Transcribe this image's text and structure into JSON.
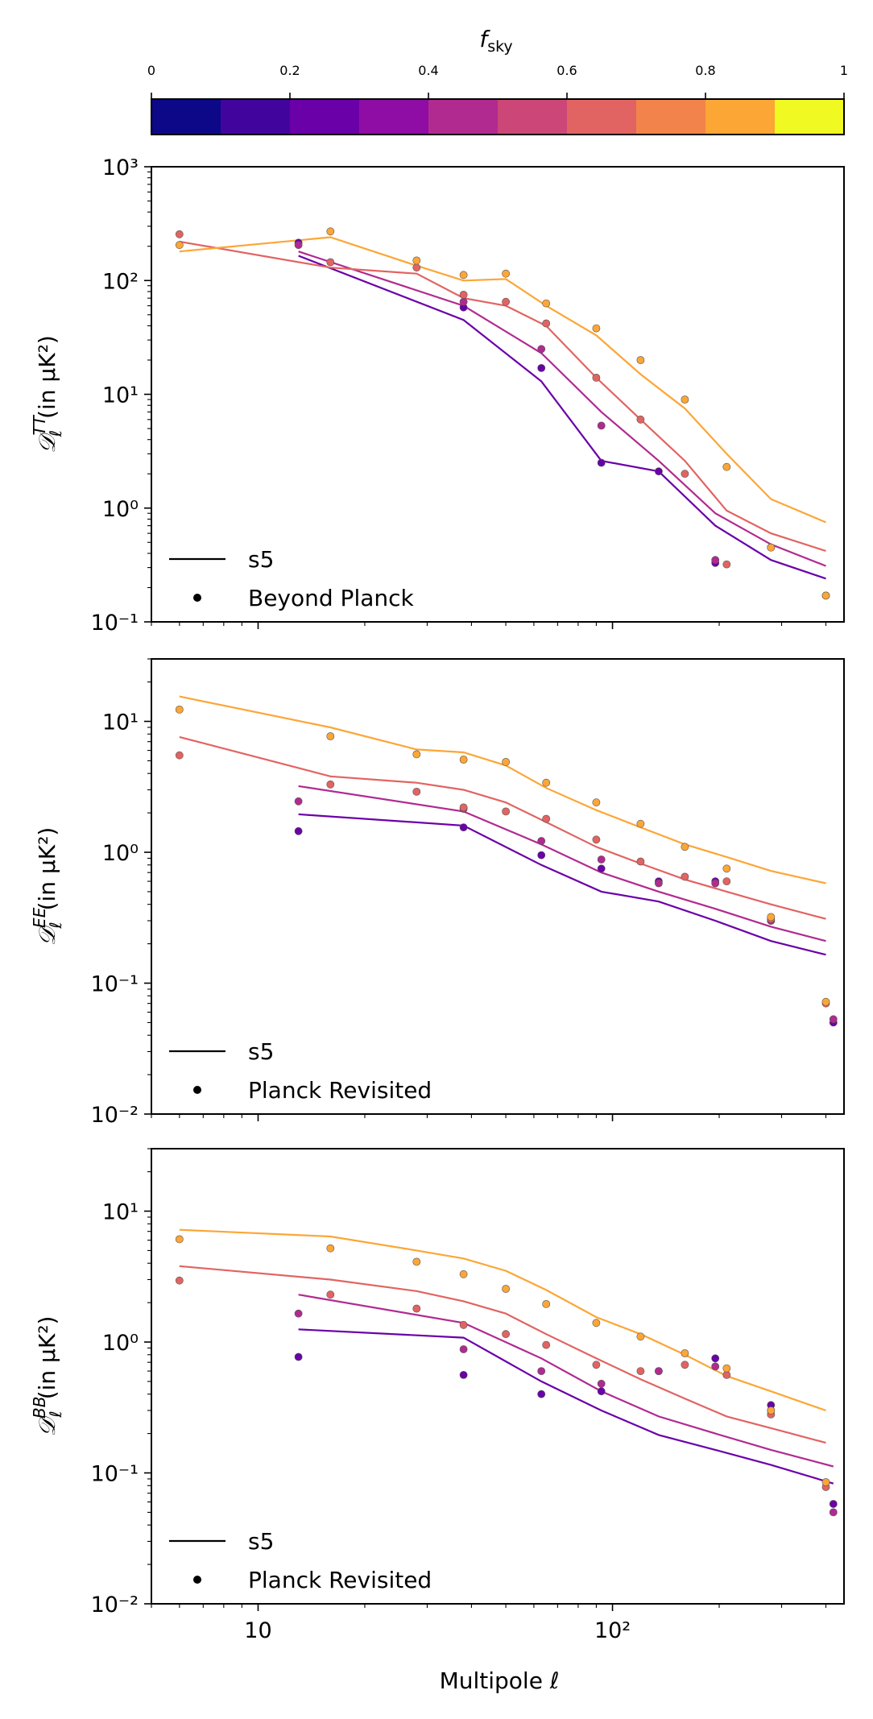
{
  "colorbar": {
    "label": "f_sky",
    "ticks": [
      "0",
      "0.2",
      "0.4",
      "0.6",
      "0.8",
      "1"
    ],
    "bins": [
      "#0d0887",
      "#41049d",
      "#6a00a8",
      "#8f0da4",
      "#b12a90",
      "#cc4778",
      "#e16462",
      "#f2844b",
      "#fca636",
      "#f0f921"
    ]
  },
  "series_colors": {
    "f0.3": "#6a00a8",
    "f0.4": "#8f0da4",
    "f0.5": "#b12a90",
    "f0.6": "#cc4778",
    "f0.7": "#e16462",
    "f0.9": "#fca636"
  },
  "xlabel": "Multipole ℓ",
  "x_ticks": [
    "10",
    "10²"
  ],
  "chart_data": [
    {
      "type": "line",
      "panel": "TT",
      "ylabel": "𝒟ℓ^TT (in μK²)",
      "yscale": "log",
      "ylim": [
        0.1,
        1000
      ],
      "y_ticks": [
        "10⁻¹",
        "10⁰",
        "10¹",
        "10²",
        "10³"
      ],
      "xscale": "log",
      "xlim": [
        5,
        450
      ],
      "legend": {
        "line_label": "s5",
        "points_label": "Beyond Planck",
        "placement": "bottom-left"
      },
      "lines": [
        {
          "color": "f0.3",
          "x": [
            13,
            38,
            63,
            93,
            135,
            195,
            280,
            400
          ],
          "y": [
            165,
            45,
            13,
            2.6,
            2.1,
            0.7,
            0.35,
            0.24
          ]
        },
        {
          "color": "f0.5",
          "x": [
            13,
            38,
            63,
            93,
            135,
            195,
            280,
            400
          ],
          "y": [
            180,
            60,
            23,
            7,
            2.6,
            0.9,
            0.48,
            0.31
          ]
        },
        {
          "color": "f0.7",
          "x": [
            6,
            16,
            28,
            38,
            50,
            65,
            90,
            120,
            160,
            210,
            280,
            400
          ],
          "y": [
            220,
            130,
            115,
            70,
            60,
            40,
            14,
            6,
            2.6,
            0.95,
            0.6,
            0.42
          ]
        },
        {
          "color": "f0.9",
          "x": [
            6,
            16,
            28,
            38,
            50,
            65,
            90,
            120,
            160,
            210,
            280,
            400
          ],
          "y": [
            180,
            240,
            135,
            100,
            103,
            60,
            33,
            15,
            7.5,
            3,
            1.2,
            0.75
          ]
        }
      ],
      "points": [
        {
          "color": "f0.3",
          "x": [
            13,
            38,
            63,
            93,
            135,
            195
          ],
          "y": [
            215,
            58,
            17,
            2.5,
            2.1,
            0.33
          ]
        },
        {
          "color": "f0.5",
          "x": [
            13,
            38,
            63,
            93,
            195
          ],
          "y": [
            205,
            65,
            25,
            5.3,
            0.35
          ]
        },
        {
          "color": "f0.7",
          "x": [
            6,
            16,
            28,
            38,
            50,
            65,
            90,
            120,
            160,
            210,
            280,
            400
          ],
          "y": [
            255,
            145,
            130,
            75,
            65,
            42,
            14,
            6,
            2,
            0.32,
            0.45,
            0.17
          ]
        },
        {
          "color": "f0.9",
          "x": [
            6,
            16,
            28,
            38,
            50,
            65,
            90,
            120,
            160,
            210,
            280,
            400
          ],
          "y": [
            205,
            270,
            150,
            112,
            115,
            63,
            38,
            20,
            9,
            2.3,
            0.45,
            0.17
          ]
        }
      ]
    },
    {
      "type": "line",
      "panel": "EE",
      "ylabel": "𝒟ℓ^EE (in μK²)",
      "yscale": "log",
      "ylim": [
        0.01,
        30
      ],
      "y_ticks": [
        "10⁻²",
        "10⁻¹",
        "10⁰",
        "10¹"
      ],
      "xscale": "log",
      "xlim": [
        5,
        450
      ],
      "legend": {
        "line_label": "s5",
        "points_label": "Planck Revisited",
        "placement": "bottom-left"
      },
      "lines": [
        {
          "color": "f0.3",
          "x": [
            13,
            38,
            63,
            93,
            135,
            195,
            280,
            400
          ],
          "y": [
            1.95,
            1.6,
            0.8,
            0.5,
            0.42,
            0.3,
            0.21,
            0.165
          ]
        },
        {
          "color": "f0.5",
          "x": [
            13,
            38,
            63,
            93,
            135,
            195,
            280,
            400
          ],
          "y": [
            3.2,
            2.05,
            1.15,
            0.7,
            0.5,
            0.37,
            0.27,
            0.21
          ]
        },
        {
          "color": "f0.7",
          "x": [
            6,
            16,
            28,
            38,
            50,
            65,
            90,
            120,
            160,
            210,
            280,
            400
          ],
          "y": [
            7.6,
            3.8,
            3.4,
            3.0,
            2.4,
            1.7,
            1.1,
            0.82,
            0.62,
            0.5,
            0.4,
            0.31
          ]
        },
        {
          "color": "f0.9",
          "x": [
            6,
            16,
            28,
            38,
            50,
            65,
            90,
            120,
            160,
            210,
            280,
            400
          ],
          "y": [
            15.5,
            9,
            6.1,
            5.8,
            4.6,
            3.1,
            2.1,
            1.55,
            1.15,
            0.92,
            0.72,
            0.58
          ]
        }
      ],
      "points": [
        {
          "color": "f0.3",
          "x": [
            13,
            38,
            63,
            93,
            135,
            195,
            280,
            420
          ],
          "y": [
            1.45,
            1.55,
            0.95,
            0.75,
            0.6,
            0.6,
            0.3,
            0.05
          ]
        },
        {
          "color": "f0.5",
          "x": [
            13,
            38,
            63,
            93,
            135,
            195,
            280,
            420
          ],
          "y": [
            2.45,
            2.15,
            1.22,
            0.88,
            0.58,
            0.58,
            0.3,
            0.053
          ]
        },
        {
          "color": "f0.7",
          "x": [
            6,
            16,
            28,
            38,
            50,
            65,
            90,
            120,
            160,
            210,
            280,
            400
          ],
          "y": [
            5.5,
            3.3,
            2.9,
            2.2,
            2.05,
            1.8,
            1.25,
            0.85,
            0.65,
            0.6,
            0.31,
            0.07
          ]
        },
        {
          "color": "f0.9",
          "x": [
            6,
            16,
            28,
            38,
            50,
            65,
            90,
            120,
            160,
            210,
            280,
            400
          ],
          "y": [
            12.3,
            7.7,
            5.6,
            5.1,
            4.9,
            3.4,
            2.4,
            1.65,
            1.1,
            0.75,
            0.32,
            0.072
          ]
        }
      ]
    },
    {
      "type": "line",
      "panel": "BB",
      "ylabel": "𝒟ℓ^BB (in μK²)",
      "yscale": "log",
      "ylim": [
        0.01,
        30
      ],
      "y_ticks": [
        "10⁻²",
        "10⁻¹",
        "10⁰",
        "10¹"
      ],
      "xscale": "log",
      "xlim": [
        5,
        450
      ],
      "legend": {
        "line_label": "s5",
        "points_label": "Planck Revisited",
        "placement": "bottom-left"
      },
      "lines": [
        {
          "color": "f0.3",
          "x": [
            13,
            38,
            63,
            93,
            135,
            195,
            280,
            420
          ],
          "y": [
            1.25,
            1.08,
            0.5,
            0.3,
            0.195,
            0.15,
            0.115,
            0.083
          ]
        },
        {
          "color": "f0.5",
          "x": [
            13,
            38,
            63,
            93,
            135,
            195,
            280,
            420
          ],
          "y": [
            2.3,
            1.4,
            0.75,
            0.42,
            0.27,
            0.2,
            0.15,
            0.112
          ]
        },
        {
          "color": "f0.7",
          "x": [
            6,
            16,
            28,
            38,
            50,
            65,
            90,
            120,
            160,
            210,
            280,
            400
          ],
          "y": [
            3.8,
            3.0,
            2.45,
            2.05,
            1.65,
            1.15,
            0.75,
            0.52,
            0.37,
            0.27,
            0.22,
            0.17
          ]
        },
        {
          "color": "f0.9",
          "x": [
            6,
            16,
            28,
            38,
            50,
            65,
            90,
            120,
            160,
            210,
            280,
            400
          ],
          "y": [
            7.2,
            6.4,
            5.0,
            4.35,
            3.5,
            2.5,
            1.55,
            1.15,
            0.8,
            0.55,
            0.42,
            0.3
          ]
        }
      ],
      "points": [
        {
          "color": "f0.3",
          "x": [
            13,
            38,
            63,
            93,
            135,
            195,
            280,
            420
          ],
          "y": [
            0.77,
            0.56,
            0.4,
            0.42,
            0.6,
            0.75,
            0.33,
            0.058
          ]
        },
        {
          "color": "f0.5",
          "x": [
            13,
            38,
            63,
            93,
            135,
            195,
            280,
            420
          ],
          "y": [
            1.65,
            0.88,
            0.6,
            0.48,
            0.6,
            0.65,
            0.3,
            0.05
          ]
        },
        {
          "color": "f0.7",
          "x": [
            6,
            16,
            28,
            38,
            50,
            65,
            90,
            120,
            160,
            210,
            280,
            400
          ],
          "y": [
            2.95,
            2.3,
            1.8,
            1.35,
            1.15,
            0.95,
            0.67,
            0.6,
            0.67,
            0.56,
            0.28,
            0.078
          ]
        },
        {
          "color": "f0.9",
          "x": [
            6,
            16,
            28,
            38,
            50,
            65,
            90,
            120,
            160,
            210,
            280,
            400
          ],
          "y": [
            6.1,
            5.2,
            4.1,
            3.3,
            2.55,
            1.95,
            1.4,
            1.1,
            0.82,
            0.63,
            0.3,
            0.085
          ]
        }
      ]
    }
  ]
}
